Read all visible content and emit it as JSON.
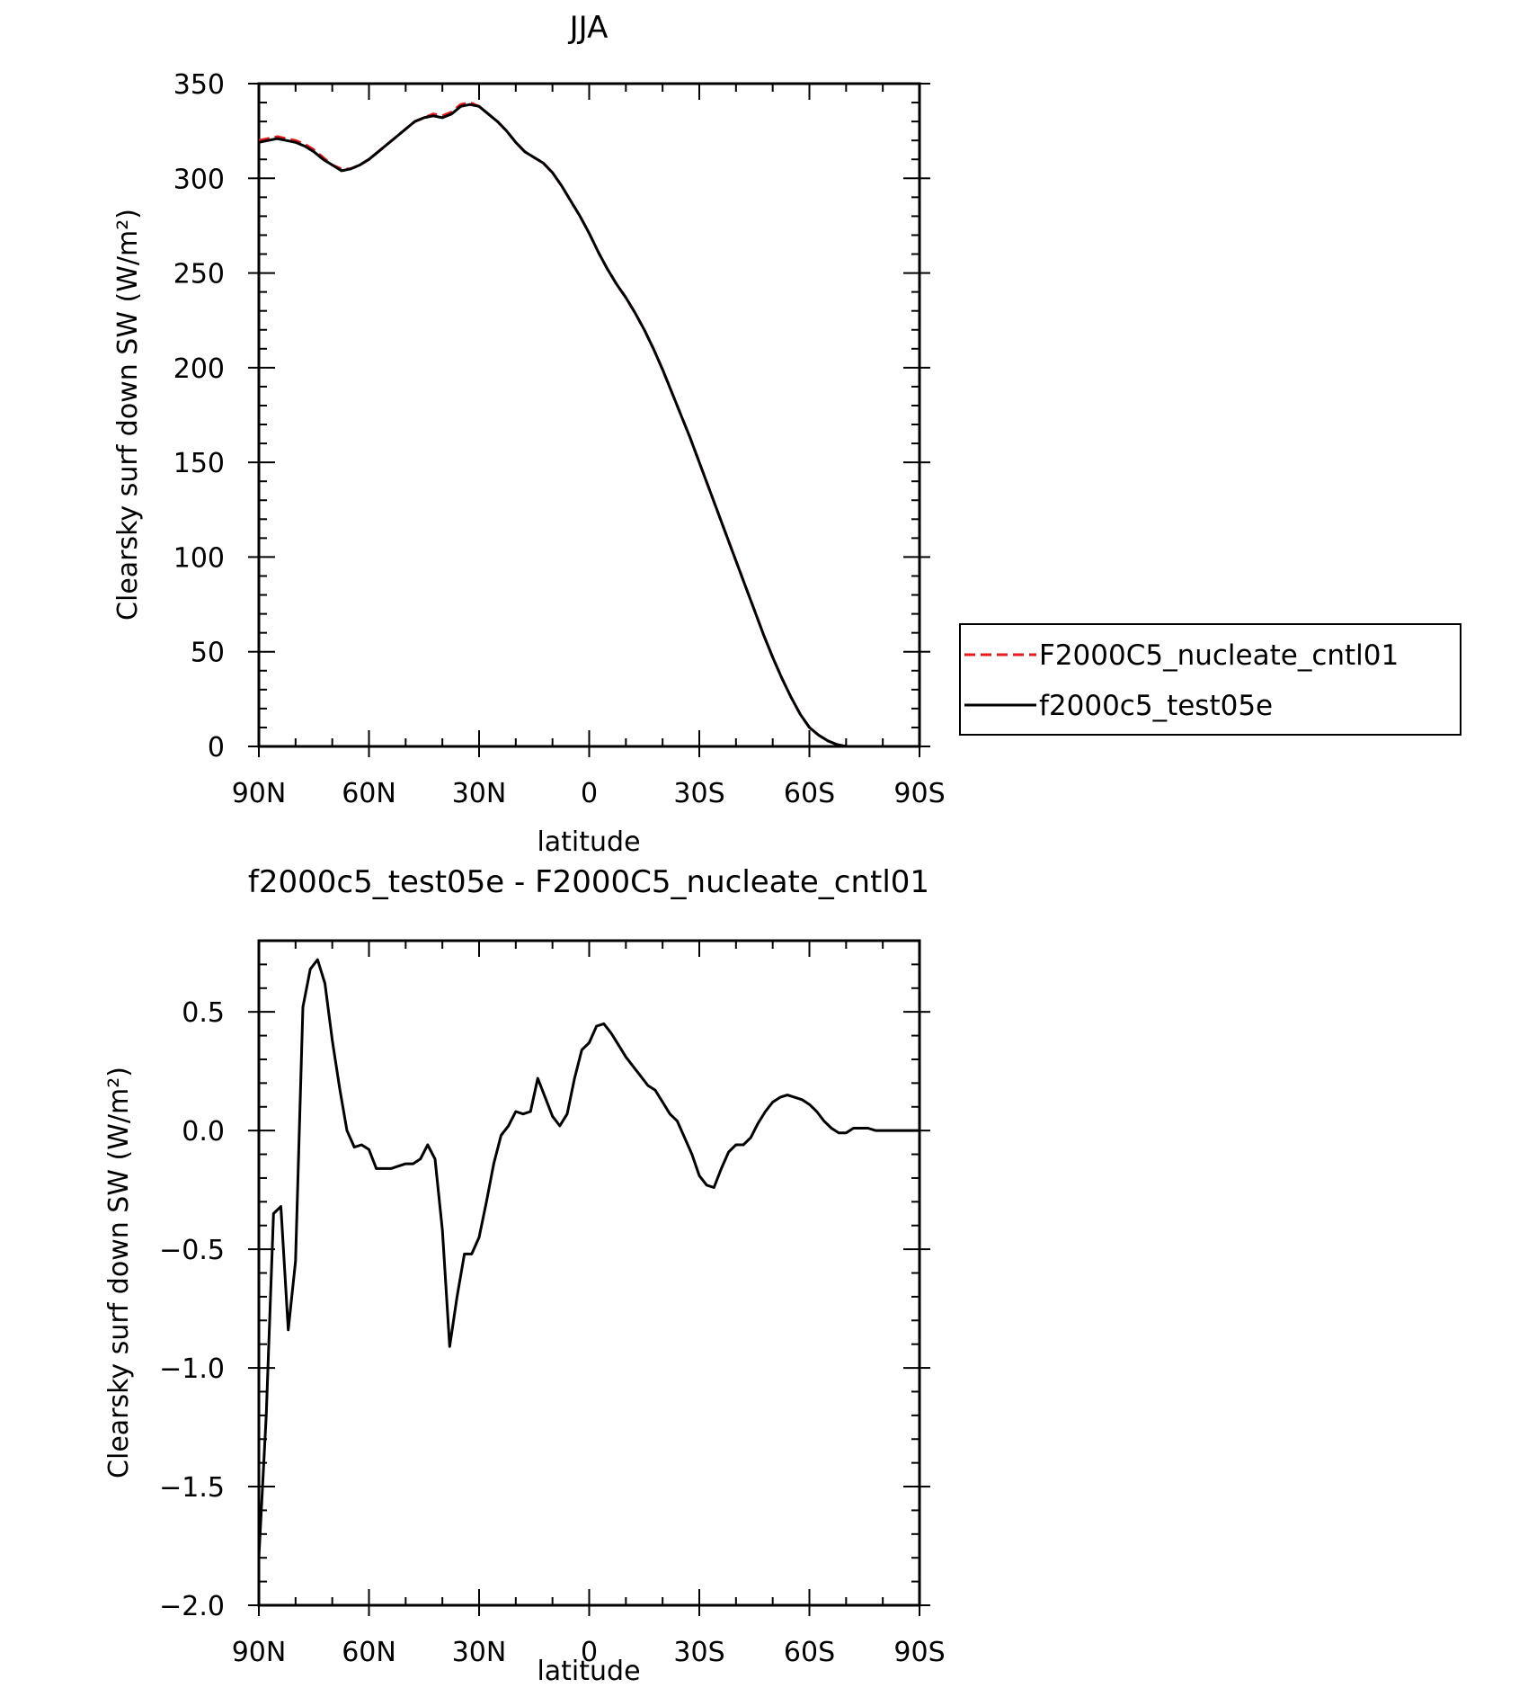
{
  "chart_data": [
    {
      "type": "line",
      "title": "JJA",
      "xlabel": "latitude",
      "ylabel": "Clearsky surf down SW (W/m²)",
      "xlim": [
        90,
        -90
      ],
      "ylim": [
        0,
        350
      ],
      "x_ticks": [
        90,
        60,
        30,
        0,
        -30,
        -60,
        -90
      ],
      "x_tick_labels": [
        "90N",
        "60N",
        "30N",
        "0",
        "30S",
        "60S",
        "90S"
      ],
      "y_ticks": [
        0,
        50,
        100,
        150,
        200,
        250,
        300,
        350
      ],
      "y_tick_labels": [
        "0",
        "50",
        "100",
        "150",
        "200",
        "250",
        "300",
        "350"
      ],
      "legend_position": "right",
      "series": [
        {
          "name": "F2000C5_nucleate_cntl01",
          "color": "#e41a1c",
          "dash": "dashed",
          "x": [
            90,
            87.5,
            85,
            82.5,
            80,
            77.5,
            75,
            72.5,
            70,
            67.5,
            65,
            62.5,
            60,
            57.5,
            55,
            52.5,
            50,
            47.5,
            45,
            42.5,
            40,
            37.5,
            35,
            32.5,
            30,
            27.5,
            25,
            22.5,
            20,
            17.5,
            15,
            12.5,
            10,
            7.5,
            5,
            2.5,
            0,
            -2.5,
            -5,
            -7.5,
            -10,
            -12.5,
            -15,
            -17.5,
            -20,
            -22.5,
            -25,
            -27.5,
            -30,
            -32.5,
            -35,
            -37.5,
            -40,
            -42.5,
            -45,
            -47.5,
            -50,
            -52.5,
            -55,
            -57.5,
            -60,
            -62.5,
            -65,
            -67.5,
            -70,
            -72.5,
            -75,
            -77.5,
            -80,
            -82.5,
            -85,
            -87.5,
            -90
          ],
          "values": [
            320,
            321,
            322,
            321,
            320,
            318,
            315,
            311,
            307,
            305,
            305,
            307,
            310,
            314,
            318,
            322,
            326,
            330,
            332,
            334,
            333,
            335,
            339,
            340,
            338,
            334,
            330,
            325,
            319,
            314,
            311,
            308,
            303,
            296,
            288,
            280,
            271,
            261,
            252,
            244,
            237,
            229,
            220,
            210,
            199,
            187,
            175,
            163,
            150,
            137,
            124,
            111,
            98,
            85,
            72,
            59,
            47,
            36,
            26,
            17,
            10,
            6,
            3,
            1,
            0,
            0,
            0,
            0,
            0,
            0,
            0,
            0,
            0
          ]
        },
        {
          "name": "f2000c5_test05e",
          "color": "#000000",
          "dash": "solid",
          "x": [
            90,
            87.5,
            85,
            82.5,
            80,
            77.5,
            75,
            72.5,
            70,
            67.5,
            65,
            62.5,
            60,
            57.5,
            55,
            52.5,
            50,
            47.5,
            45,
            42.5,
            40,
            37.5,
            35,
            32.5,
            30,
            27.5,
            25,
            22.5,
            20,
            17.5,
            15,
            12.5,
            10,
            7.5,
            5,
            2.5,
            0,
            -2.5,
            -5,
            -7.5,
            -10,
            -12.5,
            -15,
            -17.5,
            -20,
            -22.5,
            -25,
            -27.5,
            -30,
            -32.5,
            -35,
            -37.5,
            -40,
            -42.5,
            -45,
            -47.5,
            -50,
            -52.5,
            -55,
            -57.5,
            -60,
            -62.5,
            -65,
            -67.5,
            -70,
            -72.5,
            -75,
            -77.5,
            -80,
            -82.5,
            -85,
            -87.5,
            -90
          ],
          "values": [
            319,
            320,
            321,
            320,
            319,
            317,
            314,
            310,
            307,
            304,
            305,
            307,
            310,
            314,
            318,
            322,
            326,
            330,
            332,
            333,
            332,
            334,
            338,
            339,
            338,
            334,
            330,
            325,
            319,
            314,
            311,
            308,
            303,
            296,
            288,
            280,
            271,
            261,
            252,
            244,
            237,
            229,
            220,
            210,
            199,
            187,
            175,
            163,
            150,
            137,
            124,
            111,
            98,
            85,
            72,
            59,
            47,
            36,
            26,
            17,
            10,
            6,
            3,
            1,
            0,
            0,
            0,
            0,
            0,
            0,
            0,
            0,
            0
          ]
        }
      ]
    },
    {
      "type": "line",
      "title": "f2000c5_test05e - F2000C5_nucleate_cntl01",
      "xlabel": "latitude",
      "ylabel": "Clearsky surf down SW (W/m²)",
      "xlim": [
        90,
        -90
      ],
      "ylim": [
        -2.0,
        0.8
      ],
      "x_ticks": [
        90,
        60,
        30,
        0,
        -30,
        -60,
        -90
      ],
      "x_tick_labels": [
        "90N",
        "60N",
        "30N",
        "0",
        "30S",
        "60S",
        "90S"
      ],
      "y_ticks": [
        -2.0,
        -1.5,
        -1.0,
        -0.5,
        0.0,
        0.5
      ],
      "y_tick_labels": [
        "−2.0",
        "−1.5",
        "−1.0",
        "−0.5",
        "0.0",
        "0.5"
      ],
      "series": [
        {
          "color": "#000000",
          "dash": "solid",
          "x": [
            90,
            88,
            86,
            84,
            82,
            80,
            78,
            76,
            74,
            72,
            70,
            68,
            66,
            64,
            62,
            60,
            58,
            56,
            54,
            52,
            50,
            48,
            46,
            44,
            42,
            40,
            38,
            36,
            34,
            32,
            30,
            28,
            26,
            24,
            22,
            20,
            18,
            16,
            14,
            12,
            10,
            8,
            6,
            4,
            2,
            0,
            -2,
            -4,
            -6,
            -8,
            -10,
            -12,
            -14,
            -16,
            -18,
            -20,
            -22,
            -24,
            -26,
            -28,
            -30,
            -32,
            -34,
            -36,
            -38,
            -40,
            -42,
            -44,
            -46,
            -48,
            -50,
            -52,
            -54,
            -56,
            -58,
            -60,
            -62,
            -64,
            -66,
            -68,
            -70,
            -72,
            -74,
            -76,
            -78,
            -80,
            -82,
            -84,
            -86,
            -88,
            -90
          ],
          "values": [
            -1.8,
            -1.2,
            -0.35,
            -0.32,
            -0.84,
            -0.55,
            0.52,
            0.68,
            0.72,
            0.62,
            0.38,
            0.18,
            0.0,
            -0.07,
            -0.06,
            -0.08,
            -0.16,
            -0.16,
            -0.16,
            -0.15,
            -0.14,
            -0.14,
            -0.12,
            -0.06,
            -0.12,
            -0.42,
            -0.91,
            -0.7,
            -0.52,
            -0.52,
            -0.45,
            -0.3,
            -0.14,
            -0.02,
            0.02,
            0.08,
            0.07,
            0.08,
            0.22,
            0.14,
            0.06,
            0.02,
            0.07,
            0.22,
            0.34,
            0.37,
            0.44,
            0.45,
            0.41,
            0.36,
            0.31,
            0.27,
            0.23,
            0.19,
            0.17,
            0.12,
            0.07,
            0.04,
            -0.03,
            -0.1,
            -0.19,
            -0.23,
            -0.24,
            -0.16,
            -0.09,
            -0.06,
            -0.06,
            -0.03,
            0.03,
            0.08,
            0.12,
            0.14,
            0.15,
            0.14,
            0.13,
            0.11,
            0.08,
            0.04,
            0.01,
            -0.01,
            -0.01,
            0.01,
            0.01,
            0.01,
            0.0,
            0.0,
            0.0,
            0.0,
            0.0,
            0.0,
            0.0
          ]
        }
      ]
    }
  ]
}
